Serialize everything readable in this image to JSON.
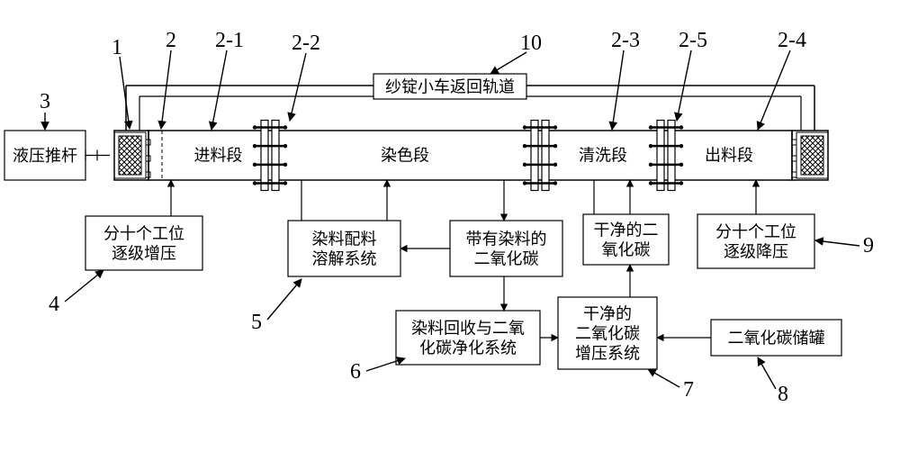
{
  "type": "flowchart",
  "background_color": "#ffffff",
  "stroke_color": "#000000",
  "label_fontsize": 18,
  "annotation_fontsize": 24,
  "callouts": {
    "c1": "1",
    "c2": "2",
    "c21": "2-1",
    "c22": "2-2",
    "c23": "2-3",
    "c24": "2-4",
    "c25": "2-5",
    "c3": "3",
    "c4": "4",
    "c5": "5",
    "c6": "6",
    "c7": "7",
    "c8": "8",
    "c9": "9",
    "c10": "10"
  },
  "boxes": {
    "hydraulic_pushrod": "液压推杆",
    "feed_section": "进料段",
    "dye_section": "染色段",
    "wash_section": "清洗段",
    "out_section": "出料段",
    "return_track": "纱锭小车返回轨道",
    "ten_stage_pressurize_l1": "分十个工位",
    "ten_stage_pressurize_l2": "逐级增压",
    "dye_mix_l1": "染料配料",
    "dye_mix_l2": "溶解系统",
    "co2_with_dye_l1": "带有染料的",
    "co2_with_dye_l2": "二氧化碳",
    "clean_co2_up_l1": "干净的二",
    "clean_co2_up_l2": "氧化碳",
    "ten_stage_depressurize_l1": "分十个工位",
    "ten_stage_depressurize_l2": "逐级降压",
    "dye_recover_l1": "染料回收与二氧",
    "dye_recover_l2": "化碳净化系统",
    "clean_co2_boost_l1": "干净的",
    "clean_co2_boost_l2": "二氧化碳",
    "clean_co2_boost_l3": "增压系统",
    "co2_tank": "二氧化碳储罐"
  }
}
